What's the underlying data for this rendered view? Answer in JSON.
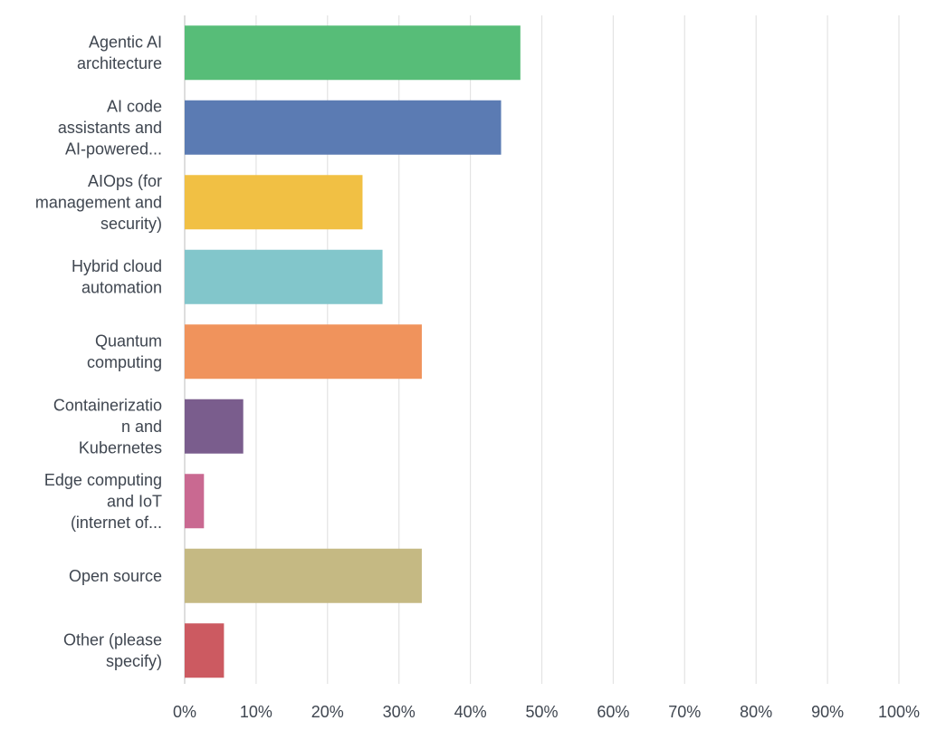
{
  "chart_data": {
    "type": "bar",
    "orientation": "horizontal",
    "title": "",
    "xlabel": "",
    "ylabel": "",
    "xlim": [
      0,
      100
    ],
    "grid": true,
    "legend": "none",
    "x_ticks": [
      "0%",
      "10%",
      "20%",
      "30%",
      "40%",
      "50%",
      "60%",
      "70%",
      "80%",
      "90%",
      "100%"
    ],
    "categories": [
      {
        "lines": [
          "Agentic AI",
          "architecture"
        ]
      },
      {
        "lines": [
          "AI code",
          "assistants and",
          "AI-powered..."
        ]
      },
      {
        "lines": [
          "AIOps (for",
          "management and",
          "security)"
        ]
      },
      {
        "lines": [
          "Hybrid cloud",
          "automation"
        ]
      },
      {
        "lines": [
          "Quantum",
          "computing"
        ]
      },
      {
        "lines": [
          "Containerizatio",
          "n and",
          "Kubernetes"
        ]
      },
      {
        "lines": [
          "Edge computing",
          "and IoT",
          "(internet of..."
        ]
      },
      {
        "lines": [
          "Open source"
        ]
      },
      {
        "lines": [
          "Other (please",
          "specify)"
        ]
      }
    ],
    "values": [
      47.0,
      44.3,
      24.9,
      27.7,
      33.2,
      8.2,
      2.7,
      33.2,
      5.5
    ],
    "colors": [
      "#57bd78",
      "#5b7bb3",
      "#f1c044",
      "#82c6cb",
      "#f0935c",
      "#7a5d8d",
      "#c96991",
      "#c5b983",
      "#cc5a61"
    ]
  }
}
